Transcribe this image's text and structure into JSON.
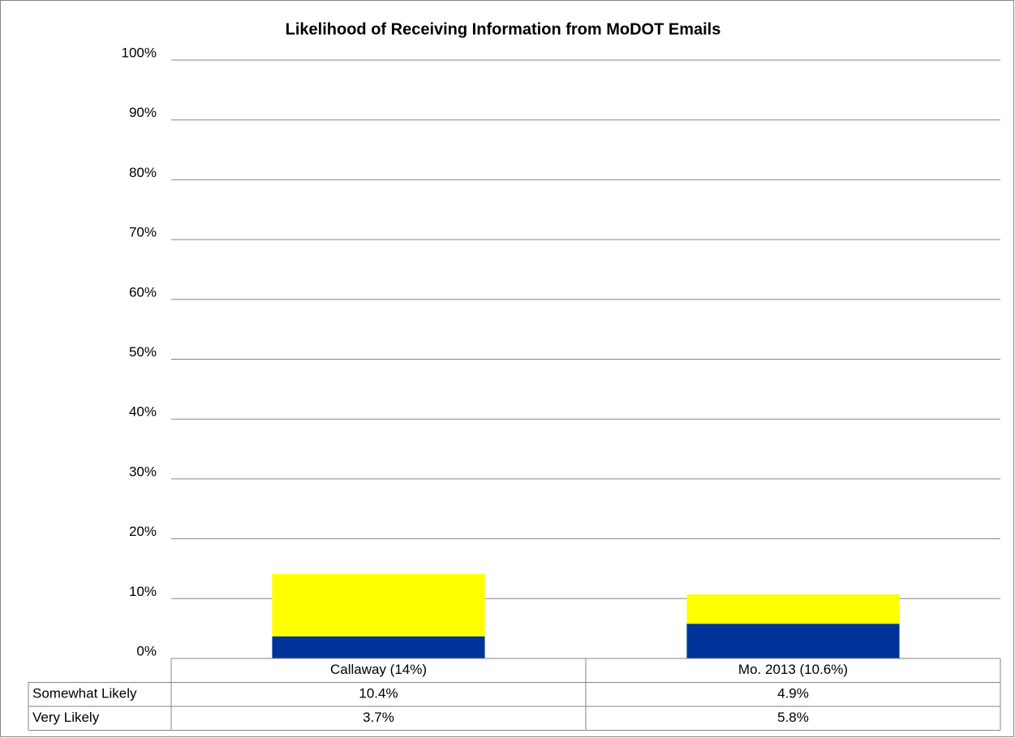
{
  "chart_data": {
    "type": "stacked_bar",
    "title": "Likelihood of Receiving Information from MoDOT Emails",
    "categories": [
      "Callaway (14%)",
      "Mo. 2013 (10.6%)"
    ],
    "series": [
      {
        "name": "Somewhat Likely",
        "color": "#ffff00",
        "values": [
          10.4,
          4.9
        ],
        "value_labels": [
          "10.4%",
          "4.9%"
        ]
      },
      {
        "name": "Very Likely",
        "color": "#003399",
        "values": [
          3.7,
          5.8
        ],
        "value_labels": [
          "3.7%",
          "5.8%"
        ]
      }
    ],
    "ylim": [
      0,
      100
    ],
    "yticks": [
      {
        "value": 0,
        "label": "0%"
      },
      {
        "value": 10,
        "label": "10%"
      },
      {
        "value": 20,
        "label": "20%"
      },
      {
        "value": 30,
        "label": "30%"
      },
      {
        "value": 40,
        "label": "40%"
      },
      {
        "value": 50,
        "label": "50%"
      },
      {
        "value": 60,
        "label": "60%"
      },
      {
        "value": 70,
        "label": "70%"
      },
      {
        "value": 80,
        "label": "80%"
      },
      {
        "value": 90,
        "label": "90%"
      },
      {
        "value": 100,
        "label": "100%"
      }
    ],
    "grid": true
  }
}
